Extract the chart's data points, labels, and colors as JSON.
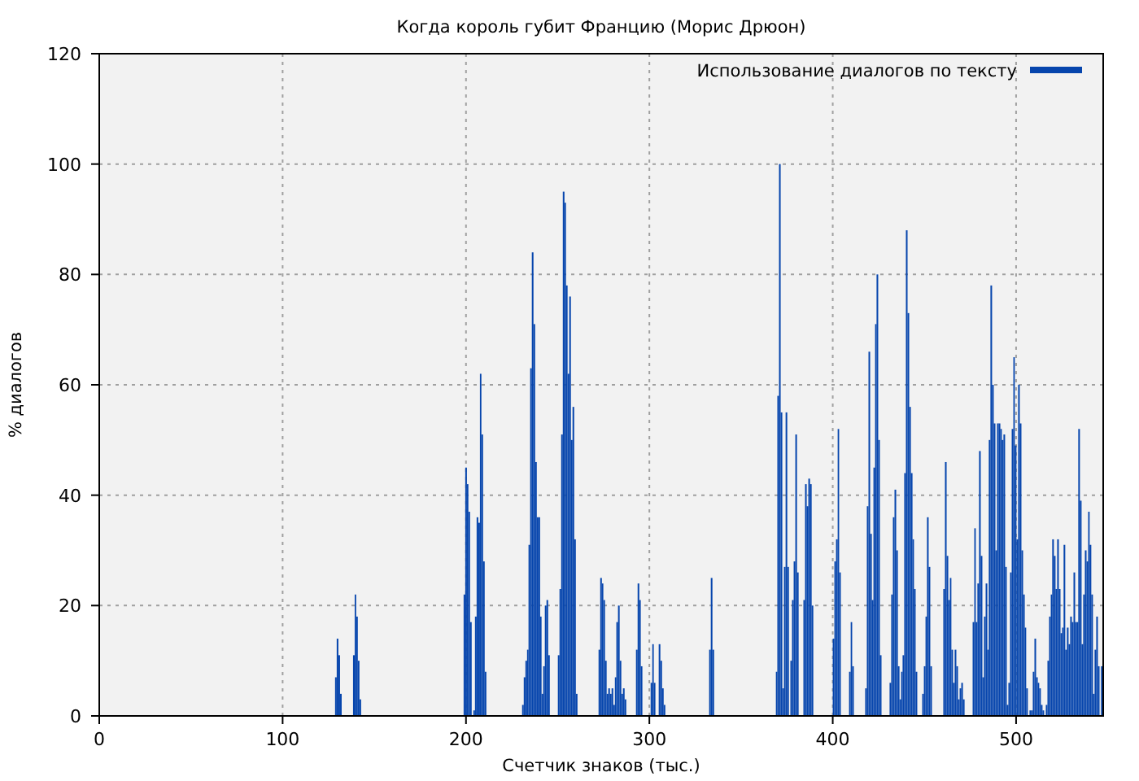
{
  "chart_data": {
    "type": "bar",
    "title": "Когда король губит Францию (Морис Дрюон)",
    "xlabel": "Счетчик знаков (тыс.)",
    "ylabel": "% диалогов",
    "x": [
      128.6,
      129.5,
      130.4,
      131.3,
      138.4,
      139.3,
      140.1,
      141.0,
      141.9,
      198.7,
      199.6,
      200.5,
      201.3,
      202.2,
      204.0,
      204.9,
      205.8,
      206.7,
      207.6,
      208.4,
      209.3,
      210.2,
      230.6,
      231.5,
      232.4,
      233.3,
      234.1,
      235.0,
      235.9,
      236.8,
      237.7,
      238.6,
      239.5,
      240.4,
      241.2,
      242.1,
      243.0,
      243.9,
      244.8,
      250.1,
      251.0,
      251.9,
      252.8,
      253.7,
      254.5,
      255.4,
      256.3,
      257.2,
      258.1,
      259.0,
      259.9,
      272.3,
      273.2,
      274.1,
      274.9,
      275.8,
      276.7,
      277.6,
      278.5,
      279.4,
      280.3,
      281.2,
      282.0,
      282.9,
      283.8,
      284.7,
      285.6,
      286.5,
      292.7,
      293.6,
      294.5,
      295.3,
      300.7,
      301.6,
      302.4,
      305.1,
      306.0,
      306.9,
      307.8,
      332.6,
      333.5,
      334.4,
      369.0,
      369.8,
      370.7,
      371.6,
      372.5,
      373.4,
      374.3,
      375.2,
      376.9,
      377.8,
      378.7,
      379.6,
      380.5,
      384.0,
      384.9,
      385.8,
      386.7,
      387.6,
      388.5,
      400.0,
      400.9,
      401.8,
      402.7,
      403.5,
      408.9,
      409.8,
      410.6,
      417.7,
      418.6,
      419.5,
      420.4,
      421.3,
      422.2,
      423.1,
      423.9,
      424.8,
      425.7,
      431.0,
      431.9,
      432.8,
      433.7,
      434.6,
      435.5,
      436.4,
      437.3,
      438.1,
      439.0,
      439.9,
      440.8,
      441.7,
      442.6,
      443.5,
      444.3,
      445.2,
      448.8,
      449.7,
      450.6,
      451.4,
      452.3,
      453.2,
      460.3,
      461.2,
      462.1,
      463.0,
      463.9,
      464.7,
      465.6,
      466.5,
      467.4,
      468.3,
      469.2,
      470.1,
      471.0,
      476.3,
      477.2,
      478.0,
      478.9,
      479.8,
      480.7,
      481.6,
      482.5,
      483.4,
      484.3,
      485.1,
      486.0,
      486.9,
      487.8,
      488.7,
      489.6,
      490.5,
      491.4,
      492.2,
      493.1,
      494.0,
      494.9,
      495.8,
      496.7,
      497.6,
      498.5,
      499.3,
      500.2,
      501.1,
      502.0,
      502.9,
      503.8,
      504.7,
      505.5,
      507.3,
      508.2,
      509.1,
      510.0,
      510.9,
      511.8,
      512.6,
      513.5,
      514.4,
      516.2,
      517.1,
      518.0,
      518.9,
      519.7,
      520.6,
      521.5,
      522.4,
      523.3,
      524.2,
      525.1,
      525.9,
      526.8,
      527.7,
      528.6,
      529.5,
      530.4,
      531.3,
      532.2,
      533.0,
      533.9,
      534.8,
      535.7,
      536.6,
      537.5,
      538.4,
      539.3,
      540.1,
      541.0,
      541.9,
      542.8,
      543.7,
      544.6,
      546.3
    ],
    "series": [
      {
        "name": "Использование диалогов по тексту",
        "color": "#0645ad",
        "values": [
          7,
          14,
          11,
          4,
          11,
          22,
          18,
          10,
          3,
          22,
          45,
          42,
          37,
          17,
          1,
          18,
          36,
          35,
          62,
          51,
          28,
          8,
          2,
          7,
          10,
          12,
          31,
          63,
          84,
          71,
          46,
          36,
          36,
          18,
          4,
          9,
          20,
          21,
          11,
          11,
          23,
          51,
          95,
          93,
          78,
          62,
          76,
          50,
          56,
          32,
          4,
          12,
          25,
          24,
          21,
          10,
          4,
          5,
          4,
          5,
          2,
          7,
          17,
          20,
          10,
          4,
          5,
          3,
          12,
          24,
          21,
          9,
          6,
          13,
          6,
          13,
          10,
          5,
          2,
          12,
          25,
          12,
          8,
          58,
          100,
          55,
          5,
          27,
          55,
          27,
          10,
          21,
          28,
          51,
          26,
          21,
          42,
          38,
          43,
          42,
          20,
          14,
          28,
          32,
          52,
          26,
          8,
          17,
          9,
          5,
          38,
          66,
          33,
          21,
          45,
          71,
          80,
          50,
          11,
          6,
          22,
          36,
          41,
          30,
          9,
          3,
          8,
          11,
          44,
          88,
          73,
          56,
          44,
          32,
          23,
          8,
          4,
          9,
          18,
          36,
          27,
          9,
          23,
          46,
          29,
          21,
          25,
          12,
          6,
          12,
          9,
          3,
          5,
          6,
          3,
          17,
          34,
          17,
          24,
          48,
          29,
          7,
          18,
          24,
          12,
          50,
          78,
          60,
          53,
          30,
          53,
          53,
          52,
          50,
          51,
          27,
          2,
          6,
          26,
          52,
          65,
          49,
          32,
          60,
          53,
          30,
          22,
          16,
          5,
          1,
          1,
          8,
          14,
          7,
          6,
          5,
          2,
          1,
          2,
          10,
          18,
          22,
          32,
          29,
          23,
          32,
          23,
          15,
          16,
          31,
          12,
          16,
          13,
          18,
          17,
          26,
          17,
          17,
          52,
          39,
          13,
          22,
          30,
          28,
          37,
          31,
          22,
          4,
          12,
          18,
          9,
          9
        ]
      }
    ],
    "xlim": [
      0,
      547.5
    ],
    "ylim": [
      0,
      120
    ],
    "xticks": [
      0,
      100,
      200,
      300,
      400,
      500
    ],
    "yticks": [
      0,
      20,
      40,
      60,
      80,
      100,
      120
    ],
    "grid": true,
    "legend": "top right"
  }
}
